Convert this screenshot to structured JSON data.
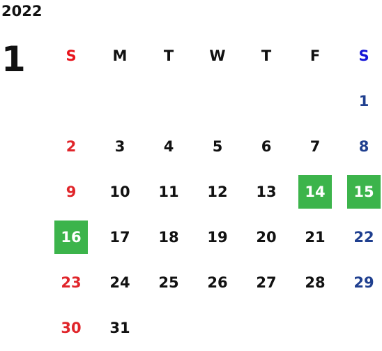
{
  "year": "2022",
  "month": "1",
  "weekdays": [
    "S",
    "M",
    "T",
    "W",
    "T",
    "F",
    "S"
  ],
  "weeks": [
    [
      null,
      null,
      null,
      null,
      null,
      null,
      1
    ],
    [
      2,
      3,
      4,
      5,
      6,
      7,
      8
    ],
    [
      9,
      10,
      11,
      12,
      13,
      14,
      15
    ],
    [
      16,
      17,
      18,
      19,
      20,
      21,
      22
    ],
    [
      23,
      24,
      25,
      26,
      27,
      28,
      29
    ],
    [
      30,
      31
    ]
  ],
  "highlighted_days": [
    14,
    15,
    16
  ],
  "highlight_color": "#3cb44b",
  "sunday_color": "#e0252a",
  "sunday_header_color": "#e8141c",
  "saturday_color": "#1f3f8f",
  "saturday_header_color": "#1414d8",
  "weekday_color": "#111111"
}
